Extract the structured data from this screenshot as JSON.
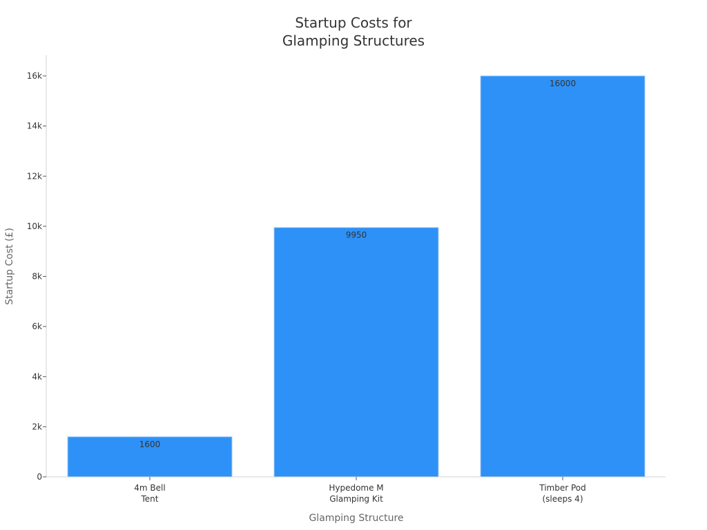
{
  "chart_data": {
    "type": "bar",
    "title": "Startup Costs for Glamping Structures",
    "title_lines": [
      "Startup Costs for",
      "Glamping Structures"
    ],
    "xlabel": "Glamping Structure",
    "ylabel": "Startup Cost (£)",
    "categories": [
      "4m Bell Tent",
      "Hypedome M Glamping Kit",
      "Timber Pod (sleeps 4)"
    ],
    "category_lines": [
      [
        "4m Bell",
        "Tent"
      ],
      [
        "Hypedome M",
        "Glamping Kit"
      ],
      [
        "Timber Pod",
        "(sleeps 4)"
      ]
    ],
    "values": [
      1600,
      9950,
      16000
    ],
    "data_labels": [
      "1600",
      "9950",
      "16000"
    ],
    "ylim": [
      0,
      16800
    ],
    "yticks": [
      0,
      2000,
      4000,
      6000,
      8000,
      10000,
      12000,
      14000,
      16000
    ],
    "ytick_labels": [
      "0",
      "2k",
      "4k",
      "6k",
      "8k",
      "10k",
      "12k",
      "14k",
      "16k"
    ],
    "grid": false,
    "legend": null,
    "colors": {
      "bar": "#2e91f7",
      "bar_edge": "#a8cdf5",
      "axis": "#d0d0d0",
      "text": "#333333",
      "axis_title": "#666666"
    }
  }
}
